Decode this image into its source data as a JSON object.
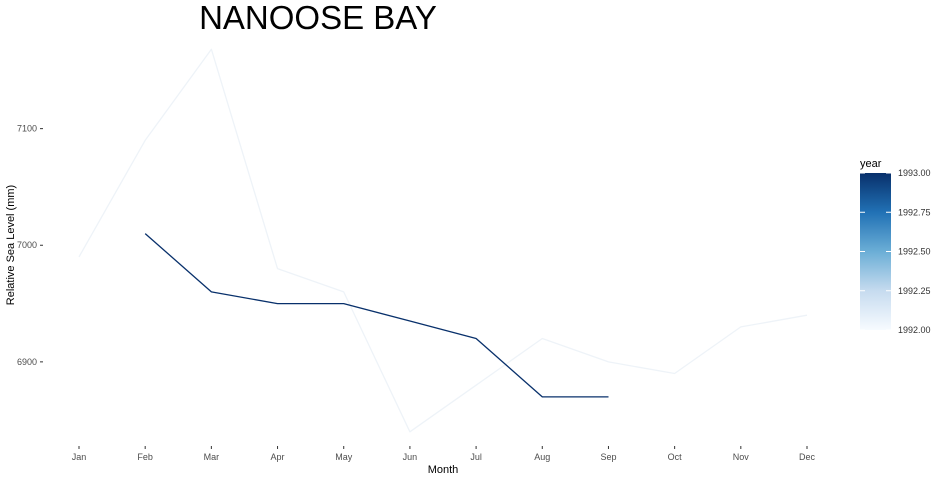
{
  "chart_data": {
    "type": "line",
    "title": "NANOOSE BAY",
    "xlabel": "Month",
    "ylabel": "Relative Sea Level (mm)",
    "categories": [
      "Jan",
      "Feb",
      "Mar",
      "Apr",
      "May",
      "Jun",
      "Jul",
      "Aug",
      "Sep",
      "Oct",
      "Nov",
      "Dec"
    ],
    "yticks": [
      6900,
      7000,
      7100
    ],
    "ylim": [
      6833,
      7176
    ],
    "grid": false,
    "color_legend": {
      "title": "year",
      "min": 1992.0,
      "max": 1993.0,
      "ticks": [
        "1992.00",
        "1992.25",
        "1992.50",
        "1992.75",
        "1993.00"
      ],
      "low_color": "#f7fbff",
      "high_color": "#08306b",
      "placement": "right"
    },
    "series": [
      {
        "year": 1992,
        "color": "#f7fbff",
        "values": [
          6990,
          7090,
          7168,
          6980,
          6960,
          6840,
          6880,
          6920,
          6900,
          6890,
          6930,
          6940
        ]
      },
      {
        "year": 1993,
        "color": "#08306b",
        "values": [
          null,
          7010,
          6960,
          6950,
          6950,
          6935,
          6920,
          6870,
          6870,
          null,
          null,
          null
        ]
      }
    ]
  }
}
